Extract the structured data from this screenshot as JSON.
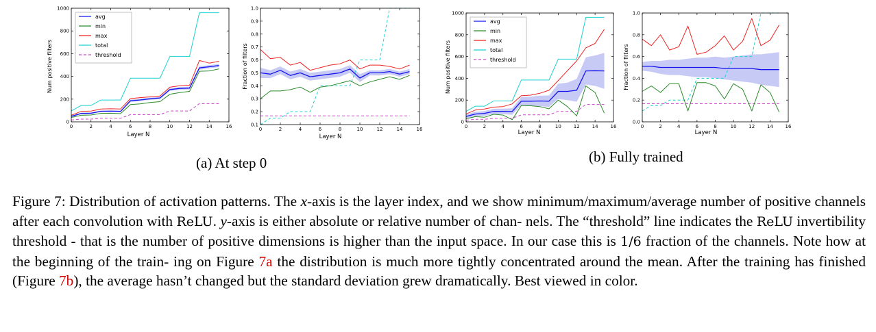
{
  "subfigures": [
    {
      "label": "(a) At step 0"
    },
    {
      "label": "(b) Fully trained"
    }
  ],
  "caption": {
    "l1a": "Figure 7: Distribution of activation patterns. The ",
    "xvar": "x",
    "l1b": "-axis is the layer index, and we show minimum/maximum/average",
    "l2a": "number of positive channels after each convolution with ",
    "relu": "ReLU",
    "l2b": ". ",
    "yvar": "y",
    "l2c": "-axis is either absolute or relative number of chan-",
    "l3a": "nels. The “threshold” line indicates the ",
    "relu2": "ReLU",
    "l3b": " invertibility threshold - that is the number of positive dimensions is",
    "l4a": "higher than the input space. In our case this is ",
    "frac": "1/6",
    "l4b": " fraction of the channels. Note how at the beginning of the train-",
    "l5a": "ing on Figure ",
    "ref1": "7a",
    "l5b": " the distribution is much more tightly concentrated around the mean. After the training has finished",
    "l6a": "(Figure ",
    "ref2": "7b",
    "l6b": "), the average hasn’t changed but the standard deviation grew dramatically. Best viewed in color."
  },
  "colors": {
    "avg": "#1515ee",
    "min": "#2a8a2a",
    "max": "#ee2222",
    "total": "#1bd1d1",
    "threshold": "#cc44cc",
    "band": "#b4b8f2",
    "ref": "#d40000"
  },
  "chart_data": [
    {
      "id": "a-count",
      "type": "line",
      "panel": "(a) At step 0",
      "xlabel": "Layer N",
      "ylabel": "Num positive filters",
      "xlim": [
        0,
        16
      ],
      "ylim": [
        0,
        1000
      ],
      "xticks": [
        0,
        2,
        4,
        6,
        8,
        10,
        12,
        14,
        16
      ],
      "yticks": [
        0,
        200,
        400,
        600,
        800,
        1000
      ],
      "x": [
        0,
        1,
        2,
        3,
        4,
        5,
        6,
        7,
        8,
        9,
        10,
        11,
        12,
        13,
        14,
        15
      ],
      "legend": [
        "avg",
        "min",
        "max",
        "total",
        "threshold"
      ],
      "legend_position": "top-left",
      "series": [
        {
          "name": "total",
          "values": [
            96,
            144,
            144,
            192,
            192,
            192,
            384,
            384,
            384,
            384,
            576,
            576,
            576,
            960,
            960,
            960
          ]
        },
        {
          "name": "max",
          "values": [
            58,
            92,
            95,
            113,
            115,
            113,
            205,
            213,
            220,
            228,
            305,
            318,
            322,
            540,
            517,
            533
          ]
        },
        {
          "name": "avg",
          "values": [
            48,
            74,
            76,
            93,
            94,
            92,
            185,
            193,
            203,
            210,
            284,
            294,
            297,
            475,
            485,
            496
          ],
          "band": [
            8,
            7,
            7,
            7,
            7,
            7,
            10,
            10,
            10,
            10,
            12,
            12,
            12,
            16,
            14,
            14
          ]
        },
        {
          "name": "min",
          "values": [
            38,
            58,
            60,
            75,
            76,
            72,
            152,
            158,
            170,
            178,
            243,
            258,
            268,
            445,
            448,
            466
          ]
        },
        {
          "name": "threshold",
          "values": [
            16,
            24,
            24,
            32,
            32,
            32,
            64,
            64,
            64,
            64,
            96,
            96,
            96,
            160,
            160,
            160
          ],
          "style": "dashed"
        }
      ]
    },
    {
      "id": "a-frac",
      "type": "line",
      "panel": "(a) At step 0",
      "xlabel": "Layer N",
      "ylabel": "Fraction of filters",
      "xlim": [
        0,
        16
      ],
      "ylim": [
        0.1,
        1.0
      ],
      "xticks": [
        0,
        2,
        4,
        6,
        8,
        10,
        12,
        14,
        16
      ],
      "yticks": [
        0.1,
        0.2,
        0.3,
        0.4,
        0.5,
        0.6,
        0.7,
        0.8,
        0.9,
        1.0
      ],
      "x": [
        0,
        1,
        2,
        3,
        4,
        5,
        6,
        7,
        8,
        9,
        10,
        11,
        12,
        13,
        14,
        15
      ],
      "series": [
        {
          "name": "max",
          "values": [
            0.68,
            0.61,
            0.62,
            0.56,
            0.58,
            0.52,
            0.54,
            0.56,
            0.57,
            0.6,
            0.53,
            0.56,
            0.56,
            0.55,
            0.53,
            0.56
          ]
        },
        {
          "name": "avg",
          "values": [
            0.5,
            0.49,
            0.52,
            0.48,
            0.5,
            0.47,
            0.48,
            0.49,
            0.5,
            0.53,
            0.46,
            0.5,
            0.5,
            0.51,
            0.49,
            0.51
          ],
          "band": [
            0.04,
            0.03,
            0.03,
            0.03,
            0.03,
            0.03,
            0.03,
            0.03,
            0.03,
            0.03,
            0.03,
            0.02,
            0.02,
            0.02,
            0.02,
            0.02
          ]
        },
        {
          "name": "min",
          "values": [
            0.3,
            0.36,
            0.36,
            0.37,
            0.39,
            0.35,
            0.39,
            0.4,
            0.42,
            0.44,
            0.4,
            0.43,
            0.45,
            0.47,
            0.45,
            0.48
          ]
        },
        {
          "name": "total",
          "values": [
            0.1,
            0.15,
            0.15,
            0.2,
            0.2,
            0.2,
            0.4,
            0.4,
            0.4,
            0.4,
            0.6,
            0.6,
            0.6,
            1.0,
            1.0,
            1.0
          ],
          "style": "dashed"
        },
        {
          "name": "threshold",
          "values": [
            0.167,
            0.167,
            0.167,
            0.167,
            0.167,
            0.167,
            0.167,
            0.167,
            0.167,
            0.167,
            0.167,
            0.167,
            0.167,
            0.167,
            0.167,
            0.167
          ],
          "style": "dashed"
        }
      ]
    },
    {
      "id": "b-count",
      "type": "line",
      "panel": "(b) Fully trained",
      "xlabel": "Layer N",
      "ylabel": "Num positive filters",
      "xlim": [
        0,
        16
      ],
      "ylim": [
        0,
        1000
      ],
      "xticks": [
        0,
        2,
        4,
        6,
        8,
        10,
        12,
        14,
        16
      ],
      "yticks": [
        0,
        200,
        400,
        600,
        800,
        1000
      ],
      "x": [
        0,
        1,
        2,
        3,
        4,
        5,
        6,
        7,
        8,
        9,
        10,
        11,
        12,
        13,
        14,
        15
      ],
      "legend": [
        "avg",
        "min",
        "max",
        "total",
        "threshold"
      ],
      "legend_position": "top-left",
      "series": [
        {
          "name": "total",
          "values": [
            96,
            144,
            144,
            192,
            192,
            192,
            384,
            384,
            384,
            384,
            576,
            576,
            576,
            960,
            960,
            960
          ]
        },
        {
          "name": "max",
          "values": [
            72,
            108,
            118,
            135,
            140,
            165,
            240,
            245,
            262,
            290,
            380,
            470,
            560,
            680,
            720,
            850
          ]
        },
        {
          "name": "avg",
          "values": [
            50,
            72,
            78,
            96,
            96,
            95,
            190,
            190,
            192,
            190,
            280,
            280,
            290,
            468,
            470,
            468
          ],
          "band": [
            18,
            20,
            22,
            24,
            25,
            30,
            38,
            42,
            48,
            52,
            70,
            80,
            105,
            125,
            140,
            165
          ]
        },
        {
          "name": "min",
          "values": [
            28,
            48,
            42,
            70,
            62,
            20,
            150,
            148,
            140,
            120,
            200,
            140,
            55,
            330,
            270,
            80
          ]
        },
        {
          "name": "threshold",
          "values": [
            16,
            24,
            24,
            32,
            32,
            32,
            64,
            64,
            64,
            64,
            96,
            96,
            96,
            160,
            160,
            160
          ],
          "style": "dashed"
        }
      ]
    },
    {
      "id": "b-frac",
      "type": "line",
      "panel": "(b) Fully trained",
      "xlabel": "Layer N",
      "ylabel": "Fraction of filters",
      "xlim": [
        0,
        16
      ],
      "ylim": [
        0.0,
        1.0
      ],
      "xticks": [
        0,
        2,
        4,
        6,
        8,
        10,
        12,
        14,
        16
      ],
      "yticks": [
        0.0,
        0.2,
        0.4,
        0.6,
        0.8,
        1.0
      ],
      "x": [
        0,
        1,
        2,
        3,
        4,
        5,
        6,
        7,
        8,
        9,
        10,
        11,
        12,
        13,
        14,
        15
      ],
      "series": [
        {
          "name": "max",
          "values": [
            0.76,
            0.7,
            0.8,
            0.66,
            0.69,
            0.88,
            0.62,
            0.64,
            0.7,
            0.79,
            0.66,
            0.74,
            0.95,
            0.7,
            0.75,
            0.89
          ]
        },
        {
          "name": "avg",
          "values": [
            0.51,
            0.51,
            0.5,
            0.5,
            0.5,
            0.5,
            0.5,
            0.5,
            0.5,
            0.49,
            0.49,
            0.49,
            0.49,
            0.48,
            0.48,
            0.48
          ],
          "band": [
            0.04,
            0.05,
            0.06,
            0.07,
            0.07,
            0.08,
            0.09,
            0.09,
            0.1,
            0.1,
            0.11,
            0.12,
            0.13,
            0.14,
            0.15,
            0.16
          ]
        },
        {
          "name": "min",
          "values": [
            0.28,
            0.33,
            0.27,
            0.35,
            0.35,
            0.1,
            0.36,
            0.36,
            0.33,
            0.21,
            0.35,
            0.3,
            0.1,
            0.34,
            0.27,
            0.09
          ]
        },
        {
          "name": "total",
          "values": [
            0.1,
            0.15,
            0.15,
            0.2,
            0.2,
            0.2,
            0.4,
            0.4,
            0.4,
            0.4,
            0.6,
            0.6,
            0.6,
            1.0,
            1.0,
            1.0
          ],
          "style": "dashed"
        },
        {
          "name": "threshold",
          "values": [
            0.167,
            0.167,
            0.167,
            0.167,
            0.167,
            0.167,
            0.167,
            0.167,
            0.167,
            0.167,
            0.167,
            0.167,
            0.167,
            0.167,
            0.167,
            0.167
          ],
          "style": "dashed"
        }
      ]
    }
  ]
}
